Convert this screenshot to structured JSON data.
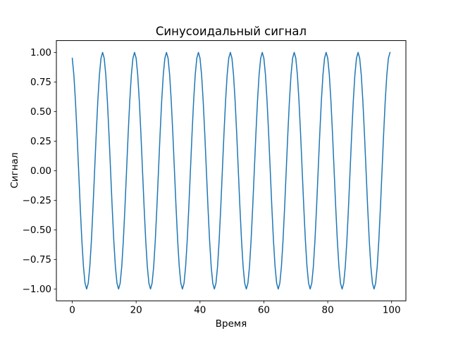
{
  "figure": {
    "background": "#ffffff"
  },
  "chart_data": {
    "type": "line",
    "title": "Синусоидальный сигнал",
    "xlabel": "Время",
    "ylabel": "Сигнал",
    "grid": false,
    "legend": "none",
    "line_color": "#1f77b4",
    "line_width": 1.5,
    "axis_color": "#000000",
    "xlim": [
      -4.975,
      104.475
    ],
    "ylim": [
      -1.1,
      1.1
    ],
    "xticks": [
      {
        "v": 0,
        "label": "0"
      },
      {
        "v": 20,
        "label": "20"
      },
      {
        "v": 40,
        "label": "40"
      },
      {
        "v": 60,
        "label": "60"
      },
      {
        "v": 80,
        "label": "80"
      },
      {
        "v": 100,
        "label": "100"
      }
    ],
    "yticks": [
      {
        "v": 1.0,
        "label": "1.00"
      },
      {
        "v": 0.75,
        "label": "0.75"
      },
      {
        "v": 0.5,
        "label": "0.50"
      },
      {
        "v": 0.25,
        "label": "0.25"
      },
      {
        "v": 0.0,
        "label": "0.00"
      },
      {
        "v": -0.25,
        "label": "−0.25"
      },
      {
        "v": -0.5,
        "label": "−0.50"
      },
      {
        "v": -0.75,
        "label": "−0.75"
      },
      {
        "v": -1.0,
        "label": "−1.00"
      }
    ],
    "x": [
      0,
      0.5,
      1,
      1.5,
      2,
      2.5,
      3,
      3.5,
      4,
      4.5,
      5,
      5.5,
      6,
      6.5,
      7,
      7.5,
      8,
      8.5,
      9,
      9.5,
      10,
      10.5,
      11,
      11.5,
      12,
      12.5,
      13,
      13.5,
      14,
      14.5,
      15,
      15.5,
      16,
      16.5,
      17,
      17.5,
      18,
      18.5,
      19,
      19.5,
      20,
      20.5,
      21,
      21.5,
      22,
      22.5,
      23,
      23.5,
      24,
      24.5,
      25,
      25.5,
      26,
      26.5,
      27,
      27.5,
      28,
      28.5,
      29,
      29.5,
      30,
      30.5,
      31,
      31.5,
      32,
      32.5,
      33,
      33.5,
      34,
      34.5,
      35,
      35.5,
      36,
      36.5,
      37,
      37.5,
      38,
      38.5,
      39,
      39.5,
      40,
      40.5,
      41,
      41.5,
      42,
      42.5,
      43,
      43.5,
      44,
      44.5,
      45,
      45.5,
      46,
      46.5,
      47,
      47.5,
      48,
      48.5,
      49,
      49.5,
      50,
      50.5,
      51,
      51.5,
      52,
      52.5,
      53,
      53.5,
      54,
      54.5,
      55,
      55.5,
      56,
      56.5,
      57,
      57.5,
      58,
      58.5,
      59,
      59.5,
      60,
      60.5,
      61,
      61.5,
      62,
      62.5,
      63,
      63.5,
      64,
      64.5,
      65,
      65.5,
      66,
      66.5,
      67,
      67.5,
      68,
      68.5,
      69,
      69.5,
      70,
      70.5,
      71,
      71.5,
      72,
      72.5,
      73,
      73.5,
      74,
      74.5,
      75,
      75.5,
      76,
      76.5,
      77,
      77.5,
      78,
      78.5,
      79,
      79.5,
      80,
      80.5,
      81,
      81.5,
      82,
      82.5,
      83,
      83.5,
      84,
      84.5,
      85,
      85.5,
      86,
      86.5,
      87,
      87.5,
      88,
      88.5,
      89,
      89.5,
      90,
      90.5,
      91,
      91.5,
      92,
      92.5,
      93,
      93.5,
      94,
      94.5,
      95,
      95.5,
      96,
      96.5,
      97,
      97.5,
      98,
      98.5,
      99,
      99.5
    ],
    "y": [
      0.951,
      0.809,
      0.588,
      0.309,
      0,
      -0.309,
      -0.588,
      -0.809,
      -0.951,
      -1,
      -0.951,
      -0.809,
      -0.588,
      -0.309,
      0,
      0.309,
      0.588,
      0.809,
      0.951,
      1,
      0.951,
      0.809,
      0.588,
      0.309,
      0,
      -0.309,
      -0.588,
      -0.809,
      -0.951,
      -1,
      -0.951,
      -0.809,
      -0.588,
      -0.309,
      0,
      0.309,
      0.588,
      0.809,
      0.951,
      1,
      0.951,
      0.809,
      0.588,
      0.309,
      0,
      -0.309,
      -0.588,
      -0.809,
      -0.951,
      -1,
      -0.951,
      -0.809,
      -0.588,
      -0.309,
      0,
      0.309,
      0.588,
      0.809,
      0.951,
      1,
      0.951,
      0.809,
      0.588,
      0.309,
      0,
      -0.309,
      -0.588,
      -0.809,
      -0.951,
      -1,
      -0.951,
      -0.809,
      -0.588,
      -0.309,
      0,
      0.309,
      0.588,
      0.809,
      0.951,
      1,
      0.951,
      0.809,
      0.588,
      0.309,
      0,
      -0.309,
      -0.588,
      -0.809,
      -0.951,
      -1,
      -0.951,
      -0.809,
      -0.588,
      -0.309,
      0,
      0.309,
      0.588,
      0.809,
      0.951,
      1,
      0.951,
      0.809,
      0.588,
      0.309,
      0,
      -0.309,
      -0.588,
      -0.809,
      -0.951,
      -1,
      -0.951,
      -0.809,
      -0.588,
      -0.309,
      0,
      0.309,
      0.588,
      0.809,
      0.951,
      1,
      0.951,
      0.809,
      0.588,
      0.309,
      0,
      -0.309,
      -0.588,
      -0.809,
      -0.951,
      -1,
      -0.951,
      -0.809,
      -0.588,
      -0.309,
      0,
      0.309,
      0.588,
      0.809,
      0.951,
      1,
      0.951,
      0.809,
      0.588,
      0.309,
      0,
      -0.309,
      -0.588,
      -0.809,
      -0.951,
      -1,
      -0.951,
      -0.809,
      -0.588,
      -0.309,
      0,
      0.309,
      0.588,
      0.809,
      0.951,
      1,
      0.951,
      0.809,
      0.588,
      0.309,
      0,
      -0.309,
      -0.588,
      -0.809,
      -0.951,
      -1,
      -0.951,
      -0.809,
      -0.588,
      -0.309,
      0,
      0.309,
      0.588,
      0.809,
      0.951,
      1,
      0.951,
      0.809,
      0.588,
      0.309,
      0,
      -0.309,
      -0.588,
      -0.809,
      -0.951,
      -1,
      -0.951,
      -0.809,
      -0.588,
      -0.309,
      0,
      0.309,
      0.588,
      0.809,
      0.951,
      1
    ]
  }
}
